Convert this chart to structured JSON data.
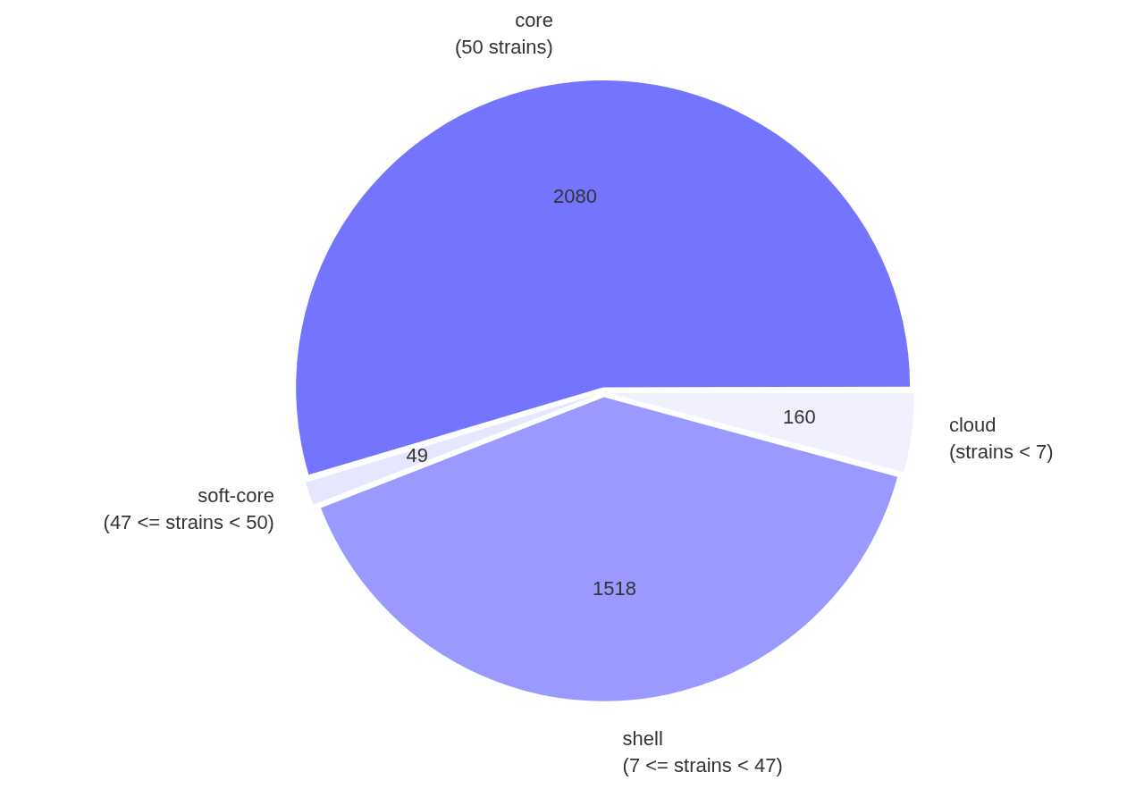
{
  "chart_data": {
    "type": "pie",
    "categories": [
      "core\n(50 strains)",
      "soft-core\n(47 <= strains < 50)",
      "shell\n(7 <= strains < 47)",
      "cloud\n(strains < 7)"
    ],
    "values": [
      2080,
      49,
      1518,
      160
    ],
    "colors": [
      "#7474ff",
      "#e6e6ff",
      "#9999ff",
      "#f0f0ff"
    ],
    "data_labels": true,
    "legend": false
  }
}
